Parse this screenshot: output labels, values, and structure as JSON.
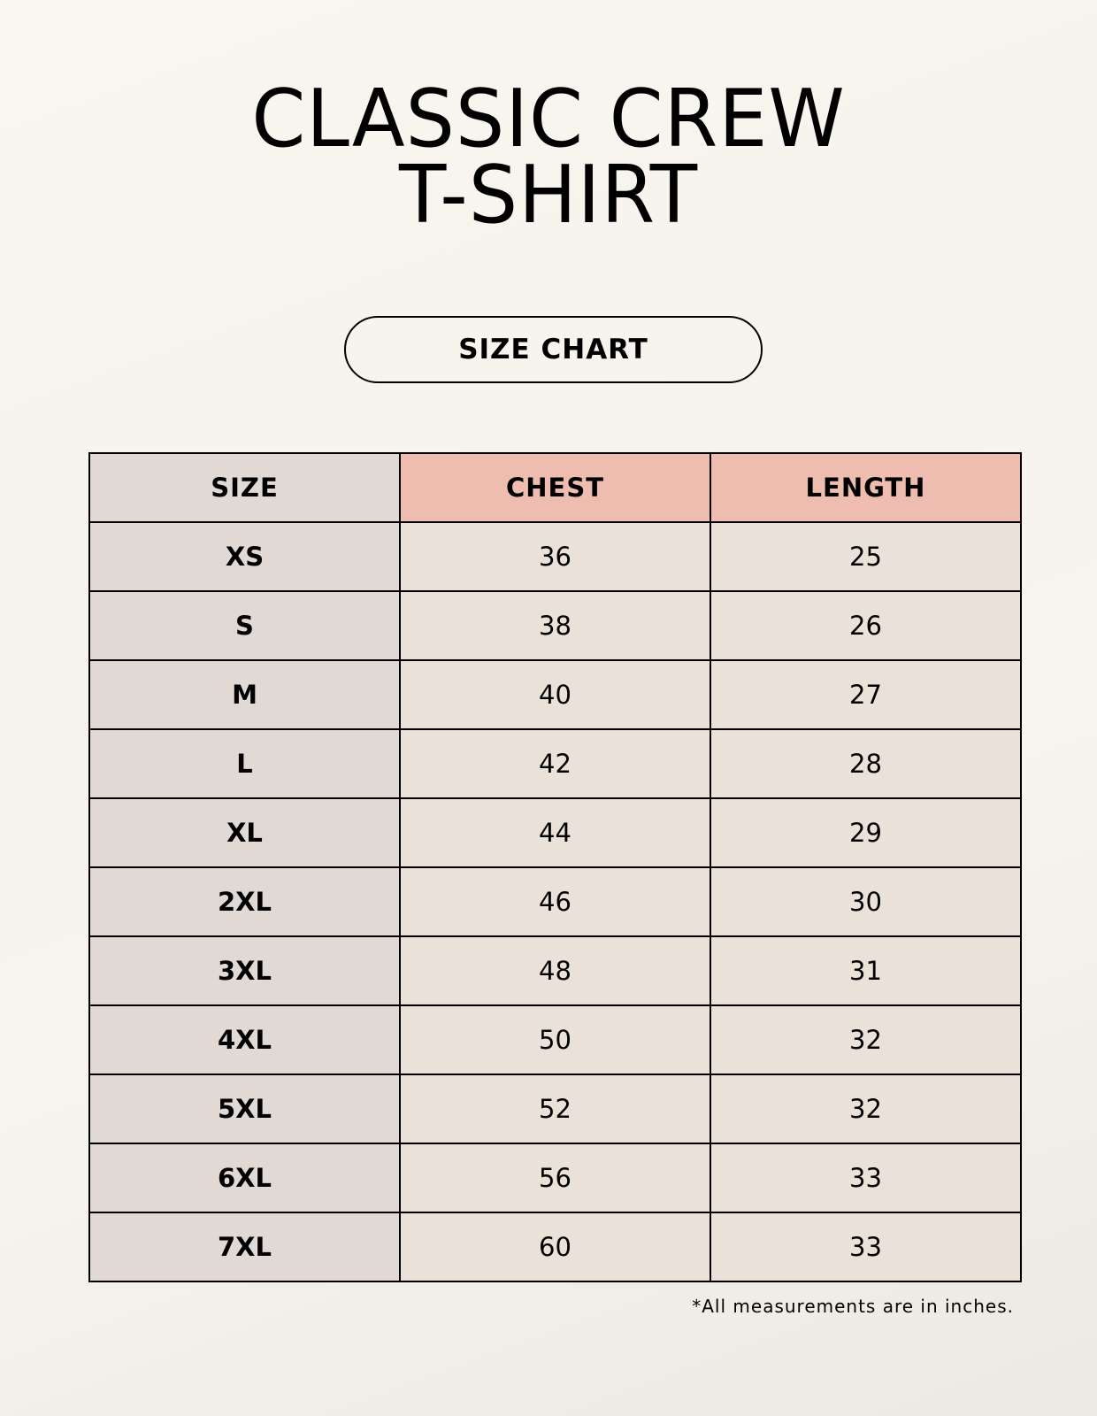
{
  "title": {
    "line1": "CLASSIC CREW",
    "line2": "T-SHIRT"
  },
  "badge": "SIZE CHART",
  "table": {
    "headers": [
      "SIZE",
      "CHEST",
      "LENGTH"
    ],
    "header_colors": [
      "#e1d9d4",
      "#eebdb0",
      "#eebdb0"
    ],
    "rows": [
      [
        "XS",
        "36",
        "25"
      ],
      [
        "S",
        "38",
        "26"
      ],
      [
        "M",
        "40",
        "27"
      ],
      [
        "L",
        "42",
        "28"
      ],
      [
        "XL",
        "44",
        "29"
      ],
      [
        "2XL",
        "46",
        "30"
      ],
      [
        "3XL",
        "48",
        "31"
      ],
      [
        "4XL",
        "50",
        "32"
      ],
      [
        "5XL",
        "52",
        "32"
      ],
      [
        "6XL",
        "56",
        "33"
      ],
      [
        "7XL",
        "60",
        "33"
      ]
    ]
  },
  "footnote": "*All measurements are in inches."
}
